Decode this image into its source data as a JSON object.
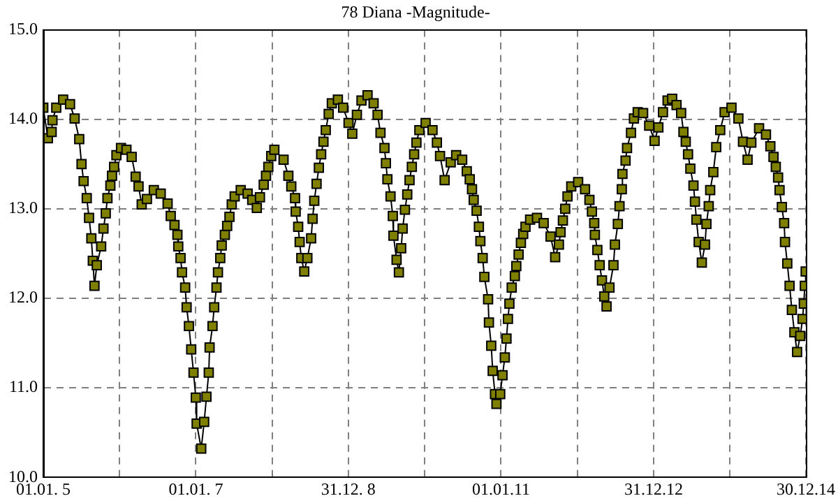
{
  "chart_data": {
    "type": "line",
    "title": "78 Diana -Magnitude-",
    "x": [
      "2005-01-01",
      "2005-01-23",
      "2005-02-10",
      "2005-02-14",
      "2005-03-04",
      "2005-04-06",
      "2005-05-09",
      "2005-05-31",
      "2005-06-22",
      "2005-07-03",
      "2005-07-13",
      "2005-07-28",
      "2005-08-08",
      "2005-08-19",
      "2005-08-26",
      "2005-09-03",
      "2005-09-14",
      "2005-10-05",
      "2005-10-16",
      "2005-10-27",
      "2005-11-04",
      "2005-11-18",
      "2005-11-26",
      "2005-12-06",
      "2005-12-17",
      "2006-01-08",
      "2006-02-03",
      "2006-02-28",
      "2006-03-19",
      "2006-04-02",
      "2006-04-17",
      "2006-05-12",
      "2006-06-14",
      "2006-07-17",
      "2006-08-19",
      "2006-09-03",
      "2006-09-21",
      "2006-10-05",
      "2006-10-09",
      "2006-10-20",
      "2006-10-27",
      "2006-11-11",
      "2006-11-18",
      "2006-11-29",
      "2006-12-10",
      "2006-12-21",
      "2007-01-01",
      "2007-01-05",
      "2007-01-27",
      "2007-02-10",
      "2007-02-21",
      "2007-03-04",
      "2007-03-08",
      "2007-03-22",
      "2007-03-30",
      "2007-04-10",
      "2007-04-17",
      "2007-04-28",
      "2007-05-05",
      "2007-05-20",
      "2007-05-31",
      "2007-06-11",
      "2007-06-22",
      "2007-07-06",
      "2007-08-04",
      "2007-09-06",
      "2007-09-28",
      "2007-10-20",
      "2007-11-04",
      "2007-11-22",
      "2007-12-03",
      "2007-12-14",
      "2007-12-28",
      "2008-01-12",
      "2008-02-25",
      "2008-03-19",
      "2008-04-02",
      "2008-04-20",
      "2008-04-23",
      "2008-05-05",
      "2008-05-12",
      "2008-05-20",
      "2008-06-03",
      "2008-06-18",
      "2008-07-06",
      "2008-07-13",
      "2008-07-21",
      "2008-08-01",
      "2008-08-12",
      "2008-08-23",
      "2008-09-03",
      "2008-09-14",
      "2008-09-28",
      "2008-10-13",
      "2008-11-11",
      "2008-12-06",
      "2009-01-01",
      "2009-01-19",
      "2009-02-10",
      "2009-03-04",
      "2009-04-02",
      "2009-05-01",
      "2009-05-20",
      "2009-06-03",
      "2009-06-22",
      "2009-06-29",
      "2009-07-06",
      "2009-07-21",
      "2009-08-01",
      "2009-08-04",
      "2009-08-19",
      "2009-08-30",
      "2009-09-10",
      "2009-09-17",
      "2009-09-28",
      "2009-10-09",
      "2009-10-20",
      "2009-10-31",
      "2009-11-11",
      "2009-11-22",
      "2009-12-06",
      "2010-01-05",
      "2010-02-07",
      "2010-02-28",
      "2010-03-15",
      "2010-04-06",
      "2010-05-05",
      "2010-05-31",
      "2010-06-29",
      "2010-07-21",
      "2010-08-04",
      "2010-08-15",
      "2010-08-23",
      "2010-09-06",
      "2010-09-17",
      "2010-09-24",
      "2010-10-05",
      "2010-10-13",
      "2010-10-31",
      "2010-11-04",
      "2010-11-15",
      "2010-11-22",
      "2010-12-03",
      "2010-12-10",
      "2010-12-28",
      "2011-01-08",
      "2011-01-19",
      "2011-01-27",
      "2011-02-03",
      "2011-02-10",
      "2011-02-21",
      "2011-03-08",
      "2011-03-15",
      "2011-03-26",
      "2011-04-06",
      "2011-04-17",
      "2011-04-28",
      "2011-05-20",
      "2011-06-22",
      "2011-07-24",
      "2011-08-26",
      "2011-09-17",
      "2011-10-05",
      "2011-10-13",
      "2011-10-24",
      "2011-11-04",
      "2011-11-15",
      "2011-12-03",
      "2012-01-05",
      "2012-02-07",
      "2012-02-28",
      "2012-03-11",
      "2012-03-22",
      "2012-03-25",
      "2012-04-06",
      "2012-04-17",
      "2012-04-28",
      "2012-05-09",
      "2012-05-20",
      "2012-06-03",
      "2012-06-22",
      "2012-06-29",
      "2012-07-13",
      "2012-07-21",
      "2012-08-01",
      "2012-08-04",
      "2012-08-19",
      "2012-08-26",
      "2012-09-14",
      "2012-09-28",
      "2012-10-16",
      "2012-11-11",
      "2012-12-10",
      "2013-01-05",
      "2013-01-23",
      "2013-02-14",
      "2013-03-08",
      "2013-03-30",
      "2013-04-20",
      "2013-05-12",
      "2013-05-23",
      "2013-06-03",
      "2013-06-14",
      "2013-06-25",
      "2013-07-10",
      "2013-07-17",
      "2013-07-24",
      "2013-08-04",
      "2013-08-19",
      "2013-09-03",
      "2013-09-10",
      "2013-09-21",
      "2013-09-28",
      "2013-10-13",
      "2013-10-27",
      "2013-11-15",
      "2013-12-06",
      "2014-01-08",
      "2014-02-10",
      "2014-03-04",
      "2014-03-26",
      "2014-04-13",
      "2014-05-20",
      "2014-06-22",
      "2014-07-13",
      "2014-07-28",
      "2014-08-08",
      "2014-08-19",
      "2014-08-26",
      "2014-09-06",
      "2014-09-17",
      "2014-09-21",
      "2014-10-02",
      "2014-10-13",
      "2014-10-24",
      "2014-11-05",
      "2014-11-18",
      "2014-12-03",
      "2014-12-14",
      "2014-12-20",
      "2014-12-25",
      "2014-12-29"
    ],
    "series": [
      {
        "color": "#808000",
        "values": [
          14.13,
          13.79,
          13.86,
          13.99,
          14.13,
          14.22,
          14.17,
          14.01,
          13.78,
          13.5,
          13.31,
          13.12,
          12.9,
          12.67,
          12.42,
          12.14,
          12.37,
          12.58,
          12.78,
          12.95,
          13.12,
          13.26,
          13.37,
          13.47,
          13.6,
          13.68,
          13.66,
          13.58,
          13.36,
          13.25,
          13.05,
          13.11,
          13.21,
          13.17,
          13.06,
          12.92,
          12.82,
          12.71,
          12.58,
          12.45,
          12.29,
          12.12,
          11.9,
          11.69,
          11.43,
          11.17,
          10.89,
          10.6,
          10.32,
          10.62,
          10.9,
          11.17,
          11.45,
          11.69,
          11.9,
          12.12,
          12.29,
          12.45,
          12.59,
          12.71,
          12.81,
          12.91,
          13.05,
          13.14,
          13.21,
          13.17,
          13.1,
          13.01,
          13.13,
          13.27,
          13.37,
          13.47,
          13.59,
          13.66,
          13.55,
          13.37,
          13.25,
          13.12,
          12.97,
          12.8,
          12.63,
          12.45,
          12.3,
          12.45,
          12.67,
          12.89,
          13.09,
          13.28,
          13.46,
          13.61,
          13.75,
          13.88,
          14.06,
          14.18,
          14.22,
          14.13,
          13.96,
          13.84,
          14.05,
          14.21,
          14.27,
          14.18,
          14.05,
          13.85,
          13.68,
          13.51,
          13.33,
          13.14,
          12.92,
          12.7,
          12.43,
          12.29,
          12.56,
          12.78,
          12.99,
          13.16,
          13.32,
          13.47,
          13.61,
          13.74,
          13.88,
          13.96,
          13.88,
          13.74,
          13.59,
          13.32,
          13.52,
          13.6,
          13.55,
          13.42,
          13.33,
          13.22,
          13.1,
          12.98,
          12.8,
          12.64,
          12.45,
          12.24,
          11.99,
          11.73,
          11.47,
          11.19,
          10.93,
          10.82,
          10.93,
          11.14,
          11.34,
          11.55,
          11.77,
          11.94,
          12.12,
          12.25,
          12.36,
          12.49,
          12.62,
          12.72,
          12.8,
          12.88,
          12.9,
          12.84,
          12.69,
          12.46,
          12.6,
          12.74,
          12.87,
          13.0,
          13.14,
          13.25,
          13.3,
          13.22,
          13.1,
          12.97,
          12.84,
          12.71,
          12.54,
          12.37,
          12.2,
          12.02,
          11.91,
          12.12,
          12.37,
          12.6,
          12.83,
          13.03,
          13.22,
          13.39,
          13.54,
          13.68,
          13.85,
          14.01,
          14.08,
          14.07,
          13.93,
          13.76,
          13.91,
          14.08,
          14.21,
          14.23,
          14.16,
          14.07,
          13.86,
          13.75,
          13.61,
          13.45,
          13.26,
          13.08,
          12.88,
          12.63,
          12.4,
          12.6,
          12.83,
          13.03,
          13.21,
          13.41,
          13.69,
          13.88,
          14.08,
          14.13,
          14.01,
          13.75,
          13.55,
          13.74,
          13.9,
          13.83,
          13.7,
          13.58,
          13.47,
          13.35,
          13.21,
          13.02,
          12.84,
          12.63,
          12.39,
          12.14,
          11.87,
          11.62,
          11.4,
          11.58,
          11.77,
          11.94,
          12.14,
          12.3
        ]
      }
    ],
    "xlim": [
      "2005-01-01",
      "2014-12-30"
    ],
    "xticks": [
      {
        "value": "2005-01-01",
        "label": "01.01. 5"
      },
      {
        "value": "2006-01-01",
        "label": null
      },
      {
        "value": "2007-01-01",
        "label": "01.01. 7"
      },
      {
        "value": "2008-01-01",
        "label": null
      },
      {
        "value": "2008-12-31",
        "label": "31.12. 8"
      },
      {
        "value": "2010-01-01",
        "label": null
      },
      {
        "value": "2011-01-01",
        "label": "01.01.11"
      },
      {
        "value": "2012-01-01",
        "label": null
      },
      {
        "value": "2012-12-31",
        "label": "31.12.12"
      },
      {
        "value": "2014-01-01",
        "label": null
      },
      {
        "value": "2014-12-30",
        "label": "30.12.14"
      }
    ],
    "ylim": [
      10,
      15
    ],
    "yticks": [
      {
        "value": 10,
        "label": "10.0"
      },
      {
        "value": 11,
        "label": "11.0"
      },
      {
        "value": 12,
        "label": "12.0"
      },
      {
        "value": 13,
        "label": "13.0"
      },
      {
        "value": 14,
        "label": "14.0"
      },
      {
        "value": 15,
        "label": "15.0"
      }
    ],
    "grid": true,
    "legend": false,
    "marker": "square",
    "line_style": "solid"
  }
}
